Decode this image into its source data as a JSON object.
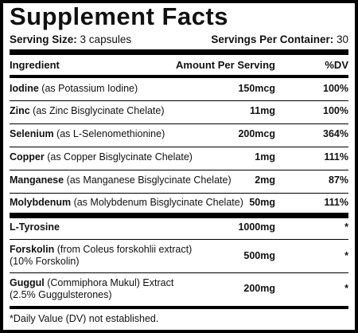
{
  "title": "Supplement Facts",
  "serving": {
    "size_label": "Serving Size:",
    "size_value": "3 capsules",
    "per_container_label": "Servings Per Container:",
    "per_container_value": "30"
  },
  "headers": {
    "ingredient": "Ingredient",
    "amount": "Amount Per Serving",
    "dv": "%DV"
  },
  "rows": [
    {
      "name": "Iodine",
      "detail": " (as Potassium Iodine)",
      "detail2": "",
      "amount": "150mcg",
      "dv": "100%"
    },
    {
      "name": "Zinc",
      "detail": " (as Zinc Bisglycinate Chelate)",
      "detail2": "",
      "amount": "11mg",
      "dv": "100%"
    },
    {
      "name": "Selenium",
      "detail": " (as L-Selenomethionine)",
      "detail2": "",
      "amount": "200mcg",
      "dv": "364%"
    },
    {
      "name": "Copper",
      "detail": " (as Copper Bisglycinate Chelate)",
      "detail2": "",
      "amount": "1mg",
      "dv": "111%"
    },
    {
      "name": "Manganese",
      "detail": " (as Manganese Bisglycinate Chelate)",
      "detail2": "",
      "amount": "2mg",
      "dv": "87%"
    },
    {
      "name": "Molybdenum",
      "detail": " (as Molybdenum Bisglycinate Chelate)",
      "detail2": "",
      "amount": "50mg",
      "dv": "111%"
    },
    {
      "name": "L-Tyrosine",
      "detail": "",
      "detail2": "",
      "amount": "1000mg",
      "dv": "*"
    },
    {
      "name": "Forskolin",
      "detail": " (from Coleus forskohlii extract)",
      "detail2": "(10% Forskolin)",
      "amount": "500mg",
      "dv": "*"
    },
    {
      "name": "Guggul",
      "detail": " (Commiphora Mukul) Extract",
      "detail2": "(2.5% Guggulsterones)",
      "amount": "200mg",
      "dv": "*"
    }
  ],
  "footnote": "*Daily Value (DV) not established."
}
